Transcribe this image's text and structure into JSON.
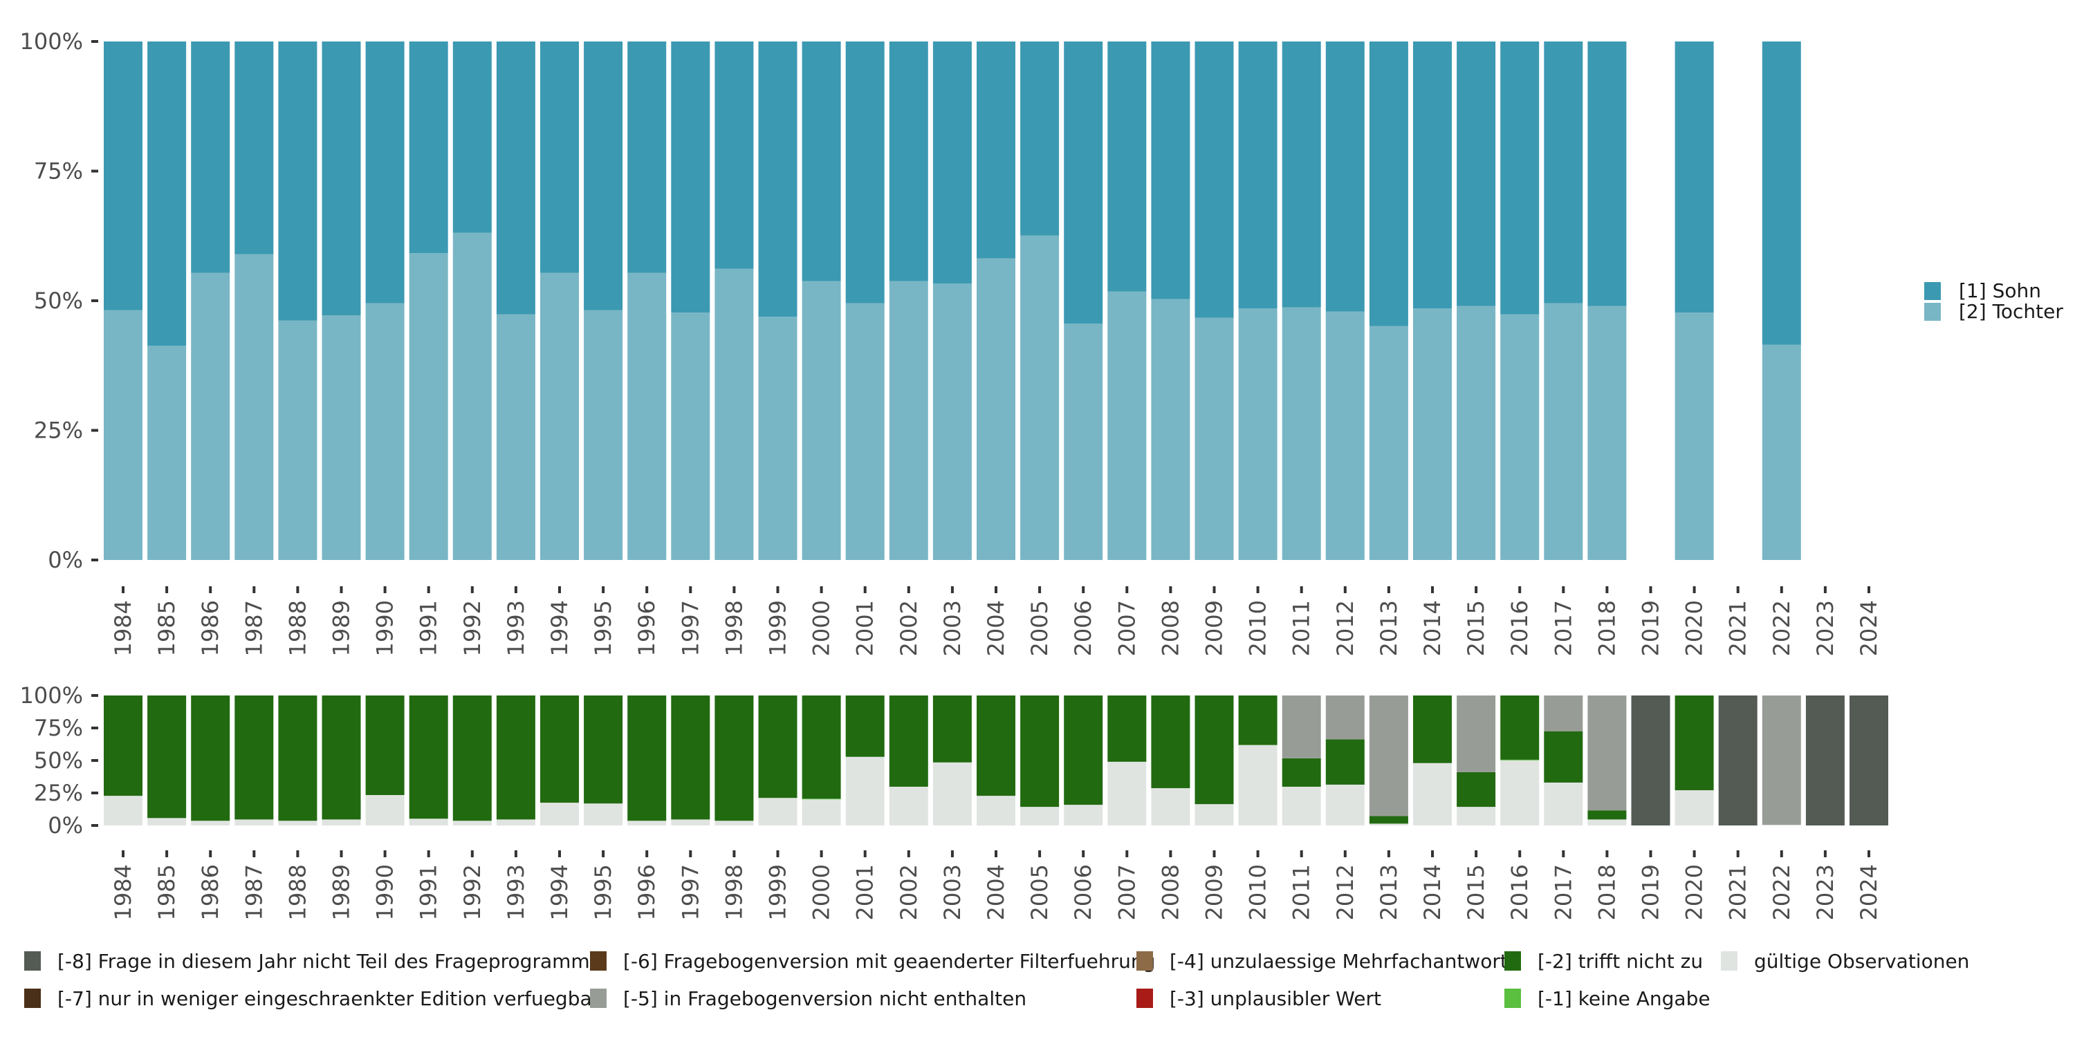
{
  "chart_data": [
    {
      "type": "bar",
      "stacked": true,
      "percent": true,
      "title": "",
      "xlabel": "",
      "ylabel": "",
      "ylim": [
        0,
        100
      ],
      "yticks": [
        "0%",
        "25%",
        "50%",
        "75%",
        "100%"
      ],
      "categories": [
        "1984",
        "1985",
        "1986",
        "1987",
        "1988",
        "1989",
        "1990",
        "1991",
        "1992",
        "1993",
        "1994",
        "1995",
        "1996",
        "1997",
        "1998",
        "1999",
        "2000",
        "2001",
        "2002",
        "2003",
        "2004",
        "2005",
        "2006",
        "2007",
        "2008",
        "2009",
        "2010",
        "2011",
        "2012",
        "2013",
        "2014",
        "2015",
        "2016",
        "2017",
        "2018",
        "2019",
        "2020",
        "2021",
        "2022",
        "2023",
        "2024"
      ],
      "legend_position": "right",
      "series": [
        {
          "name": "[2] Tochter",
          "color": "#79b6c5",
          "values": [
            48.2,
            41.3,
            55.4,
            59.0,
            46.2,
            47.2,
            49.5,
            59.2,
            63.1,
            47.4,
            55.4,
            48.2,
            55.4,
            47.7,
            56.2,
            46.9,
            53.8,
            49.5,
            53.8,
            53.3,
            58.2,
            62.6,
            45.6,
            51.8,
            50.3,
            46.7,
            48.5,
            48.7,
            47.9,
            45.1,
            48.5,
            49.0,
            47.4,
            49.5,
            49.0,
            null,
            47.7,
            null,
            41.5,
            null,
            null
          ]
        },
        {
          "name": "[1] Sohn",
          "color": "#3c99b2",
          "values": [
            51.8,
            58.7,
            44.6,
            41.0,
            53.8,
            52.8,
            50.5,
            40.8,
            36.9,
            52.6,
            44.6,
            51.8,
            44.6,
            52.3,
            43.8,
            53.1,
            46.2,
            50.5,
            46.2,
            46.7,
            41.8,
            37.4,
            54.4,
            48.2,
            49.7,
            53.3,
            51.5,
            51.3,
            52.1,
            54.9,
            51.5,
            51.0,
            52.6,
            50.5,
            51.0,
            null,
            52.3,
            null,
            58.5,
            null,
            null
          ]
        }
      ],
      "legend": [
        {
          "label": "[1] Sohn",
          "color": "#3c99b2"
        },
        {
          "label": "[2] Tochter",
          "color": "#79b6c5"
        }
      ]
    },
    {
      "type": "bar",
      "stacked": true,
      "percent": true,
      "title": "",
      "xlabel": "",
      "ylabel": "",
      "ylim": [
        0,
        100
      ],
      "yticks": [
        "0%",
        "25%",
        "50%",
        "75%",
        "100%"
      ],
      "categories": [
        "1984",
        "1985",
        "1986",
        "1987",
        "1988",
        "1989",
        "1990",
        "1991",
        "1992",
        "1993",
        "1994",
        "1995",
        "1996",
        "1997",
        "1998",
        "1999",
        "2000",
        "2001",
        "2002",
        "2003",
        "2004",
        "2005",
        "2006",
        "2007",
        "2008",
        "2009",
        "2010",
        "2011",
        "2012",
        "2013",
        "2014",
        "2015",
        "2016",
        "2017",
        "2018",
        "2019",
        "2020",
        "2021",
        "2022",
        "2023",
        "2024"
      ],
      "legend_position": "bottom",
      "series": [
        {
          "name": "gültige Observationen",
          "color": "#e0e4e0",
          "values": [
            22.8,
            5.7,
            3.6,
            4.6,
            3.6,
            4.6,
            23.4,
            5.2,
            3.6,
            4.6,
            17.5,
            16.9,
            3.6,
            4.6,
            3.6,
            21.2,
            20.1,
            52.8,
            29.8,
            48.5,
            22.8,
            14.3,
            15.9,
            49.0,
            28.7,
            16.4,
            61.9,
            29.8,
            31.4,
            1.4,
            48.0,
            14.3,
            50.1,
            33.0,
            4.6,
            0,
            27.1,
            0,
            0.5,
            0,
            0
          ]
        },
        {
          "name": "[-1] keine Angabe",
          "color": "#5bbf3f",
          "values": [
            0,
            0,
            0,
            0,
            0,
            0,
            0,
            0,
            0,
            0,
            0,
            0,
            0,
            0,
            0,
            0,
            0.5,
            0,
            0,
            0,
            0,
            0,
            0,
            0,
            0,
            0,
            0,
            0,
            0,
            0,
            0,
            0,
            0.5,
            0,
            0,
            0,
            0,
            0,
            0,
            0,
            0
          ]
        },
        {
          "name": "[-2] trifft nicht zu",
          "color": "#216a10",
          "values": [
            77.2,
            94.3,
            96.4,
            95.4,
            96.4,
            95.4,
            76.6,
            94.8,
            96.4,
            95.4,
            82.5,
            83.1,
            96.4,
            95.4,
            96.4,
            78.8,
            79.4,
            47.2,
            70.2,
            51.5,
            77.2,
            85.7,
            84.1,
            51.0,
            71.3,
            83.6,
            38.1,
            21.9,
            34.8,
            5.9,
            52.0,
            26.7,
            49.4,
            39.5,
            7.0,
            0,
            72.9,
            0,
            0,
            0,
            0
          ]
        },
        {
          "name": "[-3] unplausibler Wert",
          "color": "#a81b16",
          "values": [
            0,
            0,
            0,
            0,
            0,
            0,
            0,
            0,
            0,
            0,
            0,
            0,
            0,
            0,
            0,
            0,
            0,
            0,
            0,
            0,
            0,
            0,
            0,
            0,
            0,
            0,
            0,
            0,
            0,
            0,
            0,
            0,
            0,
            0,
            0,
            0,
            0,
            0,
            0,
            0,
            0
          ]
        },
        {
          "name": "[-4] unzulaessige Mehrfachantwort",
          "color": "#8d6b46",
          "values": [
            0,
            0,
            0,
            0,
            0,
            0,
            0,
            0,
            0,
            0,
            0,
            0,
            0,
            0,
            0,
            0,
            0,
            0,
            0,
            0,
            0,
            0,
            0,
            0,
            0,
            0,
            0,
            0,
            0,
            0,
            0,
            0,
            0,
            0,
            0,
            0,
            0,
            0,
            0,
            0,
            0
          ]
        },
        {
          "name": "[-5] in Fragebogenversion nicht enthalten",
          "color": "#989c96",
          "values": [
            0,
            0,
            0,
            0,
            0,
            0,
            0,
            0,
            0,
            0,
            0,
            0,
            0,
            0,
            0,
            0,
            0,
            0,
            0,
            0,
            0,
            0,
            0,
            0,
            0,
            0,
            0,
            48.3,
            33.8,
            92.7,
            0,
            59.0,
            0,
            27.5,
            88.4,
            0,
            0,
            0,
            99.5,
            0,
            0
          ]
        },
        {
          "name": "[-6] Fragebogenversion mit geaenderter Filterfuehrung",
          "color": "#5a3a1a",
          "values": [
            0,
            0,
            0,
            0,
            0,
            0,
            0,
            0,
            0,
            0,
            0,
            0,
            0,
            0,
            0,
            0,
            0,
            0,
            0,
            0,
            0,
            0,
            0,
            0,
            0,
            0,
            0,
            0,
            0,
            0,
            0,
            0,
            0,
            0,
            0,
            0,
            0,
            0,
            0,
            0,
            0
          ]
        },
        {
          "name": "[-7] nur in weniger eingeschraenkter Edition verfuegbar",
          "color": "#4a3018",
          "values": [
            0,
            0,
            0,
            0,
            0,
            0,
            0,
            0,
            0,
            0,
            0,
            0,
            0,
            0,
            0,
            0,
            0,
            0,
            0,
            0,
            0,
            0,
            0,
            0,
            0,
            0,
            0,
            0,
            0,
            0,
            0,
            0,
            0,
            0,
            0,
            0,
            0,
            0,
            0,
            0,
            0
          ]
        },
        {
          "name": "[-8] Frage in diesem Jahr nicht Teil des Frageprogramms",
          "color": "#535b54",
          "values": [
            0,
            0,
            0,
            0,
            0,
            0,
            0,
            0,
            0,
            0,
            0,
            0,
            0,
            0,
            0,
            0,
            0,
            0,
            0,
            0,
            0,
            0,
            0,
            0,
            0,
            0,
            0,
            0,
            0,
            0,
            0,
            0,
            0,
            0,
            0,
            100,
            0,
            100,
            0,
            100,
            100
          ]
        }
      ],
      "legend": [
        {
          "label": "[-8] Frage in diesem Jahr nicht Teil des Frageprogramms",
          "color": "#535b54"
        },
        {
          "label": "[-7] nur in weniger eingeschraenkter Edition verfuegbar",
          "color": "#4a3018"
        },
        {
          "label": "[-6] Fragebogenversion mit geaenderter Filterfuehrung",
          "color": "#5a3a1a"
        },
        {
          "label": "[-5] in Fragebogenversion nicht enthalten",
          "color": "#989c96"
        },
        {
          "label": "[-4] unzulaessige Mehrfachantwort",
          "color": "#8d6b46"
        },
        {
          "label": "[-3] unplausibler Wert",
          "color": "#a81b16"
        },
        {
          "label": "[-2] trifft nicht zu",
          "color": "#216a10"
        },
        {
          "label": "[-1] keine Angabe",
          "color": "#5bbf3f"
        },
        {
          "label": "gültige Observationen",
          "color": "#e0e4e0"
        }
      ]
    }
  ]
}
